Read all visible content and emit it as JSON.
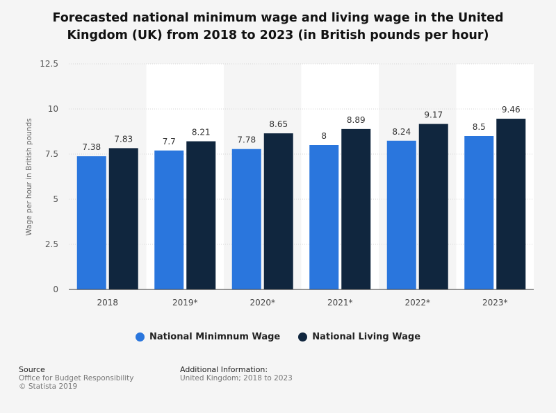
{
  "title_lines": [
    "Forecasted national minimum wage and living wage in the United",
    "Kingdom (UK) from 2018 to 2023 (in British pounds per hour)"
  ],
  "legend": [
    {
      "label": "National Minimnum Wage",
      "color": "#2a76dd"
    },
    {
      "label": "National Living Wage",
      "color": "#10263e"
    }
  ],
  "footer": {
    "source_heading": "Source",
    "source_lines": [
      "Office for Budget Responsibility",
      "© Statista 2019"
    ],
    "info_heading": "Additional Information:",
    "info_lines": [
      "United Kingdom; 2018 to 2023"
    ]
  },
  "chart_data": {
    "type": "bar",
    "categories": [
      "2018",
      "2019*",
      "2020*",
      "2021*",
      "2022*",
      "2023*"
    ],
    "series": [
      {
        "name": "National Minimnum Wage",
        "color": "#2a76dd",
        "values": [
          7.38,
          7.7,
          7.78,
          8,
          8.24,
          8.5
        ],
        "labels": [
          "7.38",
          "7.7",
          "7.78",
          "8",
          "8.24",
          "8.5"
        ]
      },
      {
        "name": "National Living Wage",
        "color": "#10263e",
        "values": [
          7.83,
          8.21,
          8.65,
          8.89,
          9.17,
          9.46
        ],
        "labels": [
          "7.83",
          "8.21",
          "8.65",
          "8.89",
          "9.17",
          "9.46"
        ]
      }
    ],
    "ylabel": "Wage per hour in British pounds",
    "xlabel": "",
    "ylim": [
      0,
      12.5
    ],
    "yticks": [
      0,
      2.5,
      5,
      7.5,
      10,
      12.5
    ],
    "ytick_labels": [
      "0",
      "2.5",
      "5",
      "7.5",
      "10",
      "12.5"
    ],
    "grid": true,
    "legend_position": "bottom"
  }
}
